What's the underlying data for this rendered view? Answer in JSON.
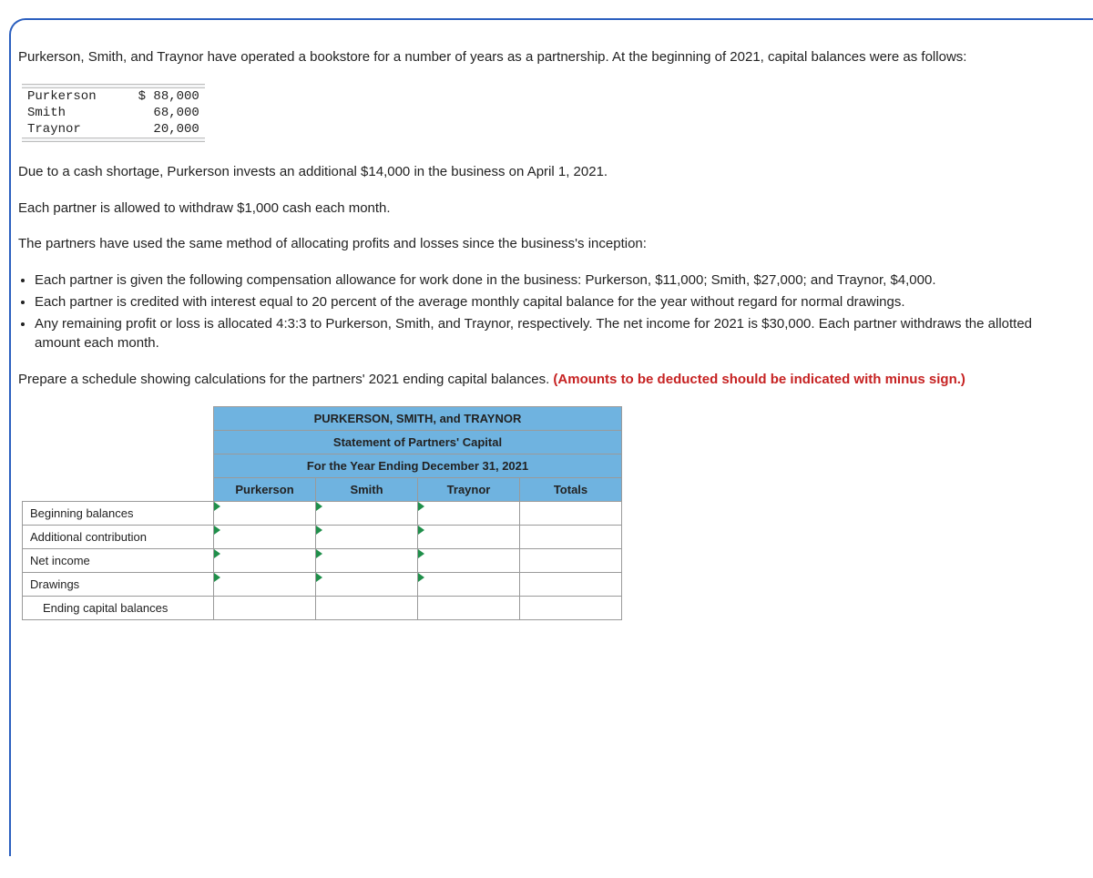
{
  "intro_para": "Purkerson, Smith, and Traynor have operated a bookstore for a number of years as a partnership. At the beginning of 2021, capital balances were as follows:",
  "balances": {
    "rows": [
      {
        "name": "Purkerson",
        "amount": "$ 88,000"
      },
      {
        "name": "Smith",
        "amount": "68,000"
      },
      {
        "name": "Traynor",
        "amount": "20,000"
      }
    ]
  },
  "para_cash": "Due to a cash shortage, Purkerson invests an additional $14,000 in the business on April 1, 2021.",
  "para_withdraw": "Each partner is allowed to withdraw $1,000 cash each month.",
  "para_method": "The partners have used the same method of allocating profits and losses since the business's inception:",
  "bullets": [
    "Each partner is given the following compensation allowance for work done in the business: Purkerson, $11,000; Smith, $27,000; and Traynor, $4,000.",
    "Each partner is credited with interest equal to 20 percent of the average monthly capital balance for the year without regard for normal drawings.",
    "Any remaining profit or loss is allocated 4:3:3 to Purkerson, Smith, and Traynor, respectively. The net income for 2021 is $30,000. Each partner withdraws the allotted amount each month."
  ],
  "prepare_text": "Prepare a schedule showing calculations for the partners' 2021 ending capital balances. ",
  "red_note": "(Amounts to be deducted should be indicated with minus sign.)",
  "statement": {
    "title1": "PURKERSON, SMITH, and TRAYNOR",
    "title2": "Statement of Partners' Capital",
    "title3": "For the Year Ending December 31, 2021",
    "columns": [
      "Purkerson",
      "Smith",
      "Traynor",
      "Totals"
    ],
    "rows": [
      "Beginning balances",
      "Additional contribution",
      "Net income",
      "Drawings",
      "Ending capital balances"
    ],
    "header_bg": "#6fb3e0",
    "tick_color": "#1f8f4a",
    "border_color": "#9a9a9a"
  }
}
